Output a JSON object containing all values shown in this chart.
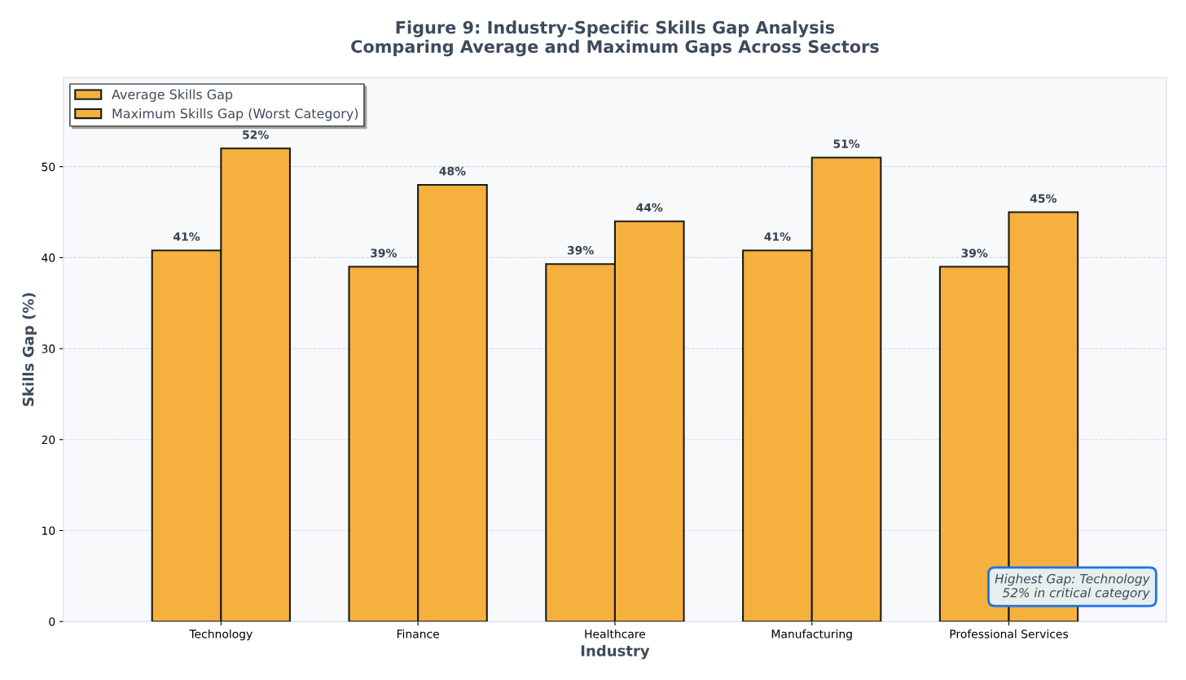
{
  "chart_data": {
    "type": "bar",
    "title": "Figure 9: Industry-Specific Skills Gap Analysis\nComparing Average and Maximum Gaps Across Sectors",
    "xlabel": "Industry",
    "ylabel": "Skills Gap (%)",
    "categories": [
      "Technology",
      "Finance",
      "Healthcare",
      "Manufacturing",
      "Professional Services"
    ],
    "series": [
      {
        "name": "Average Skills Gap",
        "color": "#f5b03d",
        "values": [
          40.8,
          39.0,
          39.3,
          40.8,
          39.0
        ],
        "value_labels": [
          "41%",
          "39%",
          "39%",
          "41%",
          "39%"
        ]
      },
      {
        "name": "Maximum Skills Gap (Worst Category)",
        "color": "#f5b03d",
        "values": [
          52.0,
          48.0,
          44.0,
          51.0,
          45.0
        ],
        "value_labels": [
          "52%",
          "48%",
          "44%",
          "51%",
          "45%"
        ]
      }
    ],
    "ylim": [
      0,
      59.8
    ],
    "yticks": [
      0,
      10,
      20,
      30,
      40,
      50
    ],
    "grid": "y",
    "legend": "top left",
    "annotations": [
      "Highest Gap: Technology\n52% in critical category"
    ]
  }
}
